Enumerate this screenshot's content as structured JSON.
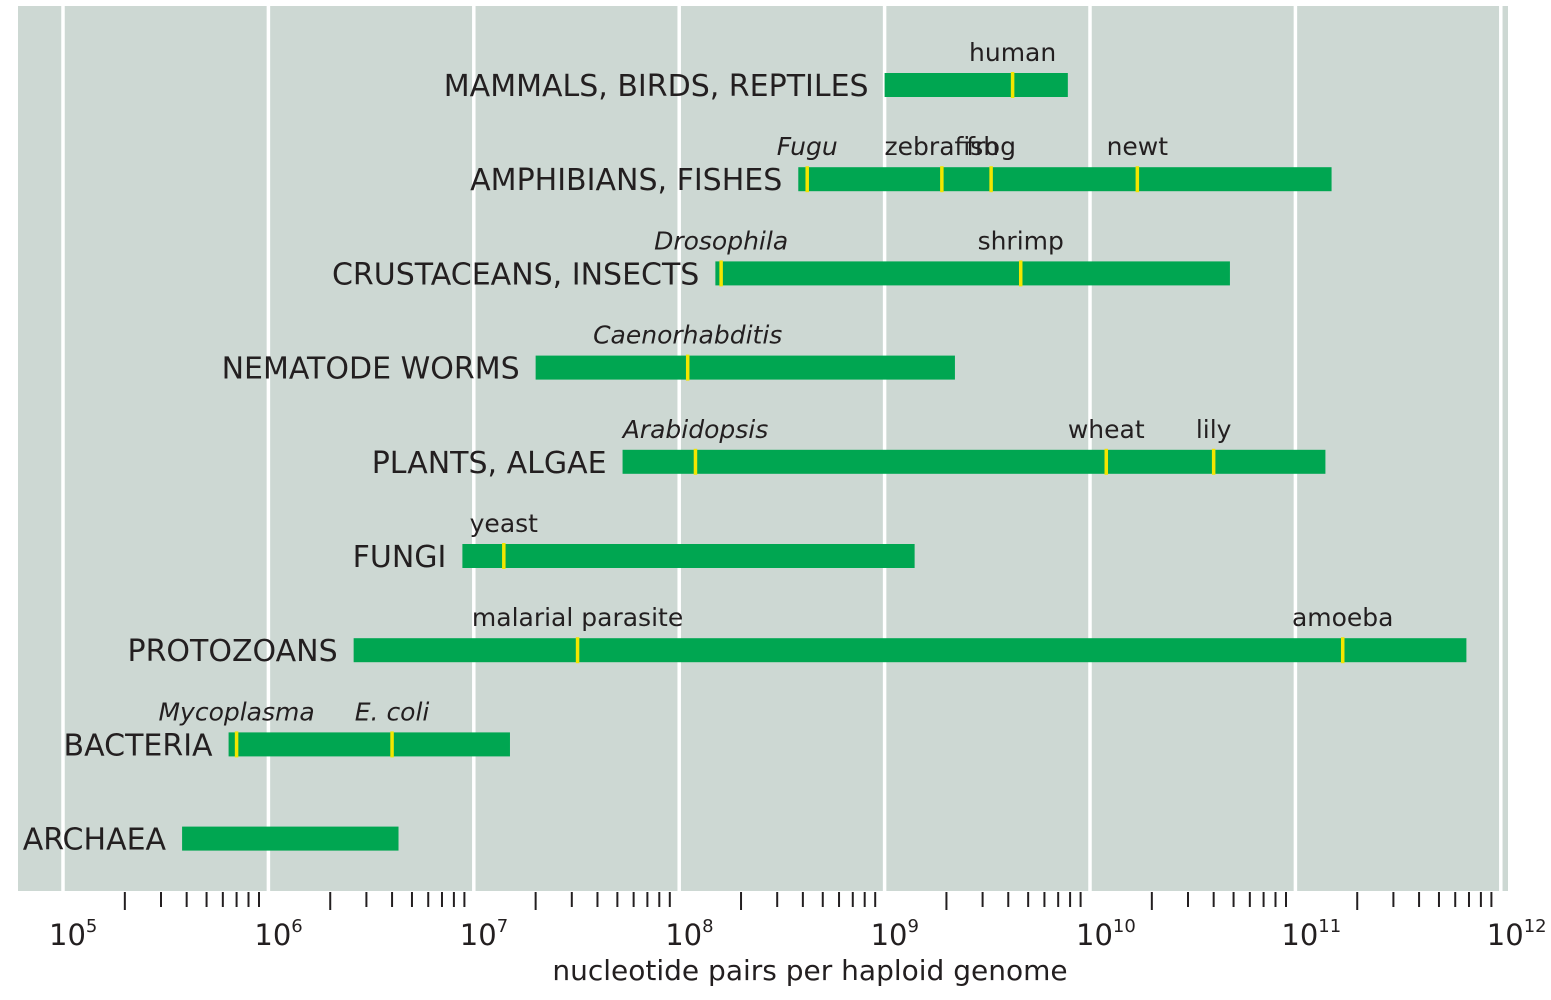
{
  "chart_data": {
    "type": "bar",
    "orientation": "horizontal-range",
    "xscale": "log",
    "xlim": [
      100000,
      1000000000000
    ],
    "xlabel": "nucleotide pairs per haploid genome",
    "ticks": [
      {
        "base": "10",
        "exp": "5",
        "value": 100000
      },
      {
        "base": "10",
        "exp": "6",
        "value": 1000000
      },
      {
        "base": "10",
        "exp": "7",
        "value": 10000000
      },
      {
        "base": "10",
        "exp": "8",
        "value": 100000000
      },
      {
        "base": "10",
        "exp": "9",
        "value": 1000000000
      },
      {
        "base": "10",
        "exp": "10",
        "value": 10000000000
      },
      {
        "base": "10",
        "exp": "11",
        "value": 100000000000
      },
      {
        "base": "10",
        "exp": "12",
        "value": 1000000000000
      }
    ],
    "grid": true,
    "colors": {
      "background": "#cdd8d3",
      "bar": "#00a651",
      "marker": "#f2e600",
      "gridline": "#ffffff",
      "text": "#231f20"
    },
    "groups": [
      {
        "label": "MAMMALS, BIRDS, REPTILES",
        "min": 1000000000,
        "max": 7800000000,
        "markers": [
          {
            "label": "human",
            "value": 4200000000,
            "italic": false
          }
        ]
      },
      {
        "label": "AMPHIBIANS, FISHES",
        "min": 380000000,
        "max": 150000000000,
        "markers": [
          {
            "label": "Fugu",
            "value": 420000000,
            "italic": true
          },
          {
            "label": "zebrafish",
            "value": 1900000000,
            "italic": false
          },
          {
            "label": "frog",
            "value": 3300000000,
            "italic": false
          },
          {
            "label": "newt",
            "value": 17000000000,
            "italic": false
          }
        ]
      },
      {
        "label": "CRUSTACEANS, INSECTS",
        "min": 150000000,
        "max": 48000000000,
        "markers": [
          {
            "label": "Drosophila",
            "value": 160000000,
            "italic": true
          },
          {
            "label": "shrimp",
            "value": 4600000000,
            "italic": false
          }
        ]
      },
      {
        "label": "NEMATODE WORMS",
        "min": 20000000,
        "max": 2200000000,
        "markers": [
          {
            "label": "Caenorhabditis",
            "value": 110000000,
            "italic": true
          }
        ]
      },
      {
        "label": "PLANTS, ALGAE",
        "min": 53000000,
        "max": 140000000000,
        "markers": [
          {
            "label": "Arabidopsis",
            "value": 120000000,
            "italic": true
          },
          {
            "label": "wheat",
            "value": 12000000000,
            "italic": false
          },
          {
            "label": "lily",
            "value": 40000000000,
            "italic": false
          }
        ]
      },
      {
        "label": "FUNGI",
        "min": 8800000,
        "max": 1400000000,
        "markers": [
          {
            "label": "yeast",
            "value": 14000000,
            "italic": false
          }
        ]
      },
      {
        "label": "PROTOZOANS",
        "min": 2600000,
        "max": 680000000000,
        "markers": [
          {
            "label": "malarial parasite",
            "value": 32000000,
            "italic": false
          },
          {
            "label": "amoeba",
            "value": 170000000000,
            "italic": false
          }
        ]
      },
      {
        "label": "BACTERIA",
        "min": 640000,
        "max": 15000000,
        "markers": [
          {
            "label": "Mycoplasma",
            "value": 700000,
            "italic": true
          },
          {
            "label": "E. coli",
            "value": 4000000,
            "italic": true
          }
        ]
      },
      {
        "label": "ARCHAEA",
        "min": 380000,
        "max": 4300000,
        "markers": []
      }
    ]
  }
}
